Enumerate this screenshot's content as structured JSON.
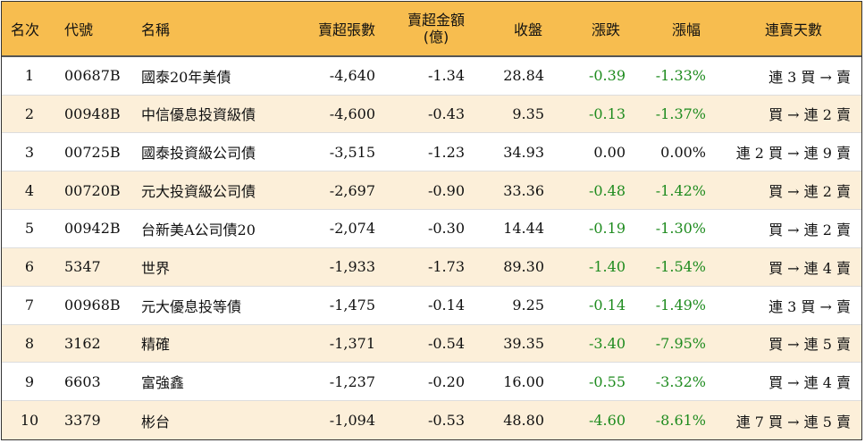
{
  "headers": {
    "rank": "名次",
    "code": "代號",
    "name": "名稱",
    "net_sell_volume": "賣超張數",
    "net_sell_amount_line1": "賣超金額",
    "net_sell_amount_line2": "(億)",
    "close": "收盤",
    "change": "漲跌",
    "change_pct": "漲幅",
    "streak": "連賣天數"
  },
  "colors": {
    "header_bg": "#f7bd4f",
    "stripe_bg": "#fcefd9",
    "negative": "#1e8b1e",
    "neutral": "#111111"
  },
  "rows": [
    {
      "rank": "1",
      "code": "00687B",
      "name": "國泰20年美債",
      "volume": "-4,640",
      "amount": "-1.34",
      "close": "28.84",
      "change": "-0.39",
      "pct": "-1.33%",
      "streak": "連 3 買 → 賣",
      "dir": "green"
    },
    {
      "rank": "2",
      "code": "00948B",
      "name": "中信優息投資級債",
      "volume": "-4,600",
      "amount": "-0.43",
      "close": "9.35",
      "change": "-0.13",
      "pct": "-1.37%",
      "streak": "買 → 連 2 賣",
      "dir": "green"
    },
    {
      "rank": "3",
      "code": "00725B",
      "name": "國泰投資級公司債",
      "volume": "-3,515",
      "amount": "-1.23",
      "close": "34.93",
      "change": "0.00",
      "pct": "0.00%",
      "streak": "連 2 買 → 連 9 賣",
      "dir": "black"
    },
    {
      "rank": "4",
      "code": "00720B",
      "name": "元大投資級公司債",
      "volume": "-2,697",
      "amount": "-0.90",
      "close": "33.36",
      "change": "-0.48",
      "pct": "-1.42%",
      "streak": "買 → 連 2 賣",
      "dir": "green"
    },
    {
      "rank": "5",
      "code": "00942B",
      "name": "台新美A公司債20",
      "volume": "-2,074",
      "amount": "-0.30",
      "close": "14.44",
      "change": "-0.19",
      "pct": "-1.30%",
      "streak": "買 → 連 2 賣",
      "dir": "green"
    },
    {
      "rank": "6",
      "code": "5347",
      "name": "世界",
      "volume": "-1,933",
      "amount": "-1.73",
      "close": "89.30",
      "change": "-1.40",
      "pct": "-1.54%",
      "streak": "買 → 連 4 賣",
      "dir": "green"
    },
    {
      "rank": "7",
      "code": "00968B",
      "name": "元大優息投等債",
      "volume": "-1,475",
      "amount": "-0.14",
      "close": "9.25",
      "change": "-0.14",
      "pct": "-1.49%",
      "streak": "連 3 買 → 賣",
      "dir": "green"
    },
    {
      "rank": "8",
      "code": "3162",
      "name": "精確",
      "volume": "-1,371",
      "amount": "-0.54",
      "close": "39.35",
      "change": "-3.40",
      "pct": "-7.95%",
      "streak": "買 → 連 5 賣",
      "dir": "green"
    },
    {
      "rank": "9",
      "code": "6603",
      "name": "富強鑫",
      "volume": "-1,237",
      "amount": "-0.20",
      "close": "16.00",
      "change": "-0.55",
      "pct": "-3.32%",
      "streak": "買 → 連 4 賣",
      "dir": "green"
    },
    {
      "rank": "10",
      "code": "3379",
      "name": "彬台",
      "volume": "-1,094",
      "amount": "-0.53",
      "close": "48.80",
      "change": "-4.60",
      "pct": "-8.61%",
      "streak": "連 7 買 → 連 5 賣",
      "dir": "green"
    }
  ]
}
